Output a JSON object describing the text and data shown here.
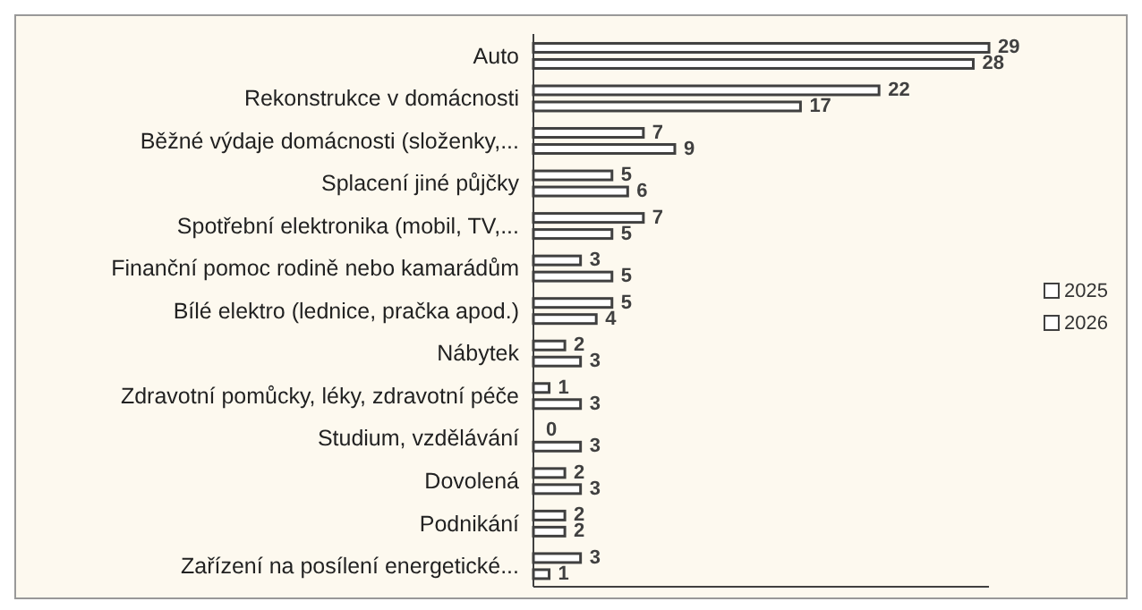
{
  "chart_data": {
    "type": "bar",
    "orientation": "horizontal",
    "categories": [
      "Auto",
      "Rekonstrukce v domácnosti",
      "Běžné výdaje domácnosti (složenky,...",
      "Splacení jiné půjčky",
      "Spotřební elektronika (mobil, TV,...",
      "Finanční pomoc rodině nebo kamarádům",
      "Bílé elektro (lednice, pračka apod.)",
      "Nábytek",
      "Zdravotní pomůcky, léky, zdravotní péče",
      "Studium, vzdělávání",
      "Dovolená",
      "Podnikání",
      "Zařízení na posílení energetické..."
    ],
    "series": [
      {
        "name": "2025",
        "color": "#ffffff",
        "values": [
          29,
          22,
          7,
          5,
          7,
          3,
          5,
          2,
          1,
          0,
          2,
          2,
          3
        ]
      },
      {
        "name": "2026",
        "color": "#ffffff",
        "values": [
          28,
          17,
          9,
          6,
          5,
          5,
          4,
          3,
          3,
          3,
          3,
          2,
          1
        ]
      }
    ],
    "data_labels": true,
    "legend": "right",
    "grid": false
  }
}
